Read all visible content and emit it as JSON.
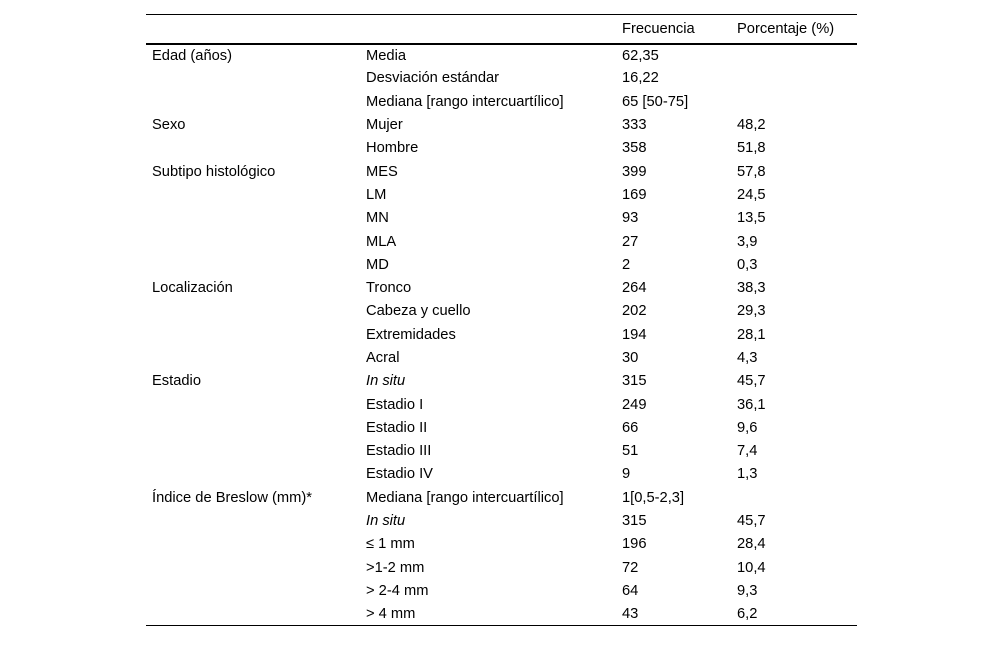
{
  "page": {
    "background": "#ffffff"
  },
  "colors": {
    "text": "#000000",
    "rule": "#000000",
    "background": "#ffffff"
  },
  "table": {
    "headers": {
      "category": "",
      "label": "",
      "frequency": "Frecuencia",
      "percentage": "Porcentaje (%)"
    },
    "rows": [
      {
        "group": "Edad (años)",
        "label": "Media",
        "span": "62,35"
      },
      {
        "group": "",
        "label": "Desviación estándar",
        "span": "16,22"
      },
      {
        "group": "",
        "label": "Mediana [rango intercuartílico]",
        "freq": "65 [50-75]",
        "pct": ""
      },
      {
        "group": "Sexo",
        "label": "Mujer",
        "freq": "333",
        "pct": "48,2"
      },
      {
        "group": "",
        "label": "Hombre",
        "freq": "358",
        "pct": "51,8"
      },
      {
        "group": "Subtipo histológico",
        "label": "MES",
        "freq": "399",
        "pct": "57,8"
      },
      {
        "group": "",
        "label": "LM",
        "freq": "169",
        "pct": "24,5"
      },
      {
        "group": "",
        "label": "MN",
        "freq": "93",
        "pct": "13,5"
      },
      {
        "group": "",
        "label": "MLA",
        "freq": "27",
        "pct": "3,9"
      },
      {
        "group": "",
        "label": "MD",
        "freq": "2",
        "pct": "0,3"
      },
      {
        "group": "Localización",
        "label": "Tronco",
        "freq": "264",
        "pct": "38,3"
      },
      {
        "group": "",
        "label": "Cabeza y cuello",
        "freq": "202",
        "pct": "29,3"
      },
      {
        "group": "",
        "label": "Extremidades",
        "freq": "194",
        "pct": "28,1"
      },
      {
        "group": "",
        "label": "Acral",
        "freq": "30",
        "pct": "4,3"
      },
      {
        "group": "Estadio",
        "label": "In situ",
        "italic": true,
        "freq": "315",
        "pct": "45,7"
      },
      {
        "group": "",
        "label": "Estadio I",
        "freq": "249",
        "pct": "36,1"
      },
      {
        "group": "",
        "label": "Estadio II",
        "freq": "66",
        "pct": "9,6"
      },
      {
        "group": "",
        "label": "Estadio III",
        "freq": "51",
        "pct": "7,4"
      },
      {
        "group": "",
        "label": "Estadio IV",
        "freq": "9",
        "pct": "1,3"
      },
      {
        "group": "Índice de Breslow (mm)*",
        "label": "Mediana [rango intercuartílico]",
        "freq": "1[0,5-2,3]",
        "pct": ""
      },
      {
        "group": "",
        "label": "In situ",
        "italic": true,
        "freq": "315",
        "pct": "45,7"
      },
      {
        "group": "",
        "label": "≤ 1 mm",
        "freq": "196",
        "pct": "28,4"
      },
      {
        "group": "",
        "label": ">1-2 mm",
        "freq": "72",
        "pct": "10,4"
      },
      {
        "group": "",
        "label": "> 2-4 mm",
        "freq": "64",
        "pct": "9,3"
      },
      {
        "group": "",
        "label": "> 4 mm",
        "freq": "43",
        "pct": "6,2"
      }
    ]
  }
}
